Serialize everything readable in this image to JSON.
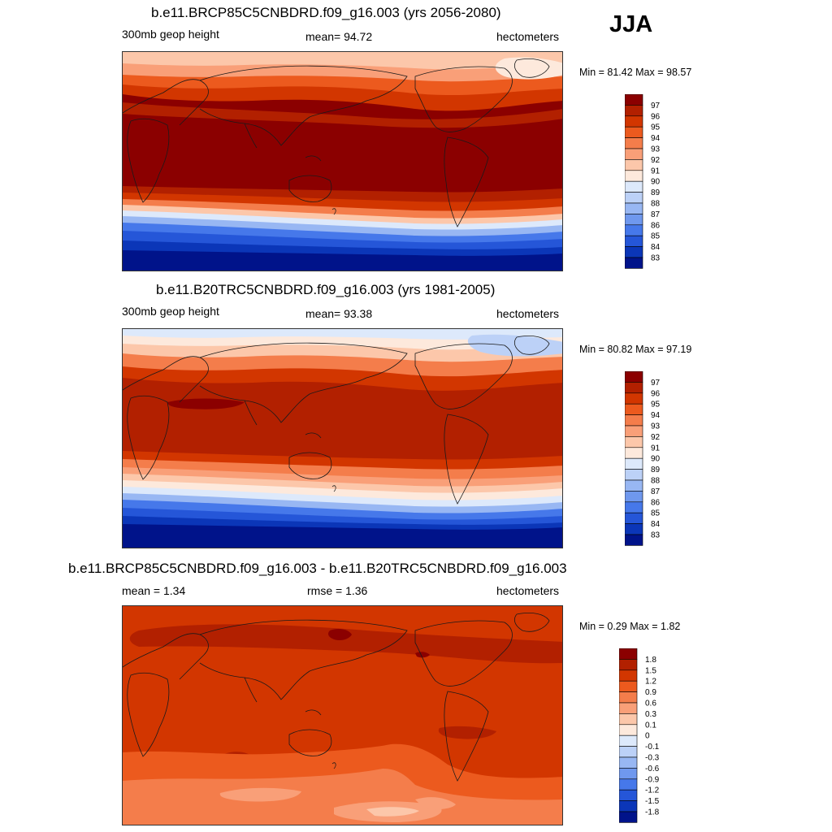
{
  "season": "JJA",
  "panels": [
    {
      "title": "b.e11.BRCP85C5CNBDRD.f09_g16.003 (yrs 2056-2080)",
      "variable": "300mb geop height",
      "stat1": "mean=  94.72",
      "units": "hectometers",
      "minmax": "Min =  81.42 Max =  98.57",
      "colorbar": {
        "labels": [
          "97",
          "96",
          "95",
          "94",
          "93",
          "92",
          "91",
          "90",
          "89",
          "88",
          "87",
          "86",
          "85",
          "84",
          "83"
        ],
        "colors": [
          "#8b0000",
          "#b22000",
          "#d23600",
          "#ec5a1e",
          "#f47d4b",
          "#f99f78",
          "#fcc7aa",
          "#fde9dc",
          "#dde9fb",
          "#bcd1f7",
          "#98b7f3",
          "#6f98ee",
          "#4678ea",
          "#2556d8",
          "#0b36b8",
          "#00138a"
        ]
      }
    },
    {
      "title": "b.e11.B20TRC5CNBDRD.f09_g16.003 (yrs 1981-2005)",
      "variable": "300mb geop height",
      "stat1": "mean=  93.38",
      "units": "hectometers",
      "minmax": "Min =  80.82 Max =  97.19",
      "colorbar": {
        "labels": [
          "97",
          "96",
          "95",
          "94",
          "93",
          "92",
          "91",
          "90",
          "89",
          "88",
          "87",
          "86",
          "85",
          "84",
          "83"
        ],
        "colors": [
          "#8b0000",
          "#b22000",
          "#d23600",
          "#ec5a1e",
          "#f47d4b",
          "#f99f78",
          "#fcc7aa",
          "#fde9dc",
          "#dde9fb",
          "#bcd1f7",
          "#98b7f3",
          "#6f98ee",
          "#4678ea",
          "#2556d8",
          "#0b36b8",
          "#00138a"
        ]
      }
    },
    {
      "title": "b.e11.BRCP85C5CNBDRD.f09_g16.003 - b.e11.B20TRC5CNBDRD.f09_g16.003",
      "stat1": "mean =   1.34",
      "stat2": "rmse =   1.36",
      "units": "hectometers",
      "minmax": "Min =   0.29 Max =   1.82",
      "colorbar": {
        "labels": [
          "1.8",
          "1.5",
          "1.2",
          "0.9",
          "0.6",
          "0.3",
          "0.1",
          "0",
          "-0.1",
          "-0.3",
          "-0.6",
          "-0.9",
          "-1.2",
          "-1.5",
          "-1.8"
        ],
        "colors": [
          "#8b0000",
          "#b22000",
          "#d23600",
          "#ec5a1e",
          "#f47d4b",
          "#f99f78",
          "#fcc7aa",
          "#fde9dc",
          "#dde9fb",
          "#bcd1f7",
          "#98b7f3",
          "#6f98ee",
          "#4678ea",
          "#2556d8",
          "#0b36b8",
          "#00138a"
        ]
      }
    }
  ],
  "map_palette": {
    "darkred": "#8b0000",
    "red1": "#b22000",
    "red2": "#d23600",
    "orange1": "#ec5a1e",
    "orange2": "#f47d4b",
    "salmon": "#f99f78",
    "peach": "#fcc7aa",
    "cream": "#fde9dc",
    "paleblue": "#dde9fb",
    "lightblue": "#bcd1f7",
    "blue1": "#6f98ee",
    "blue2": "#2556d8",
    "navy": "#00138a",
    "coast": "#1a1a1a"
  }
}
